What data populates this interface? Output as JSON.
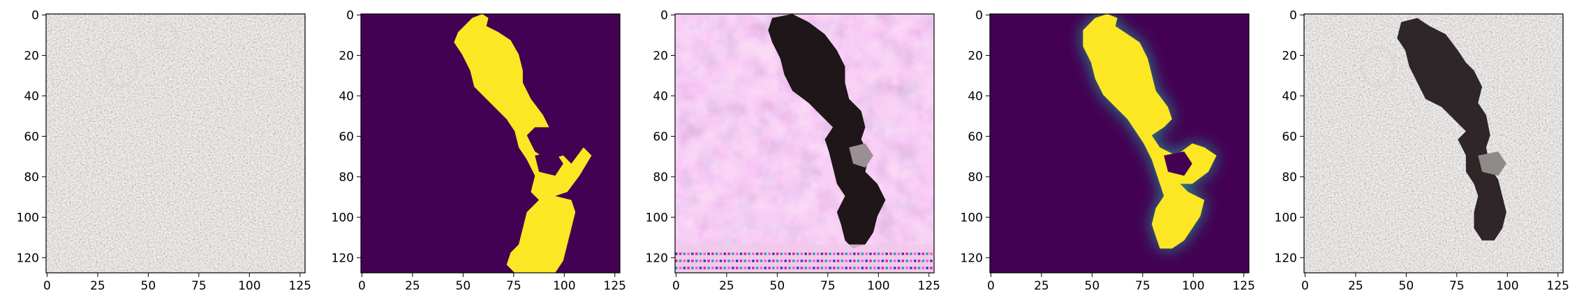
{
  "figure": {
    "panel_count": 5,
    "colors": {
      "viridis_low": "#440154",
      "viridis_high": "#fde725",
      "gravel_base": "#a9a59f",
      "dark_rock": "#1e1618",
      "pink_noise": "#e6a3d6"
    }
  },
  "chart_data": [
    {
      "type": "heatmap",
      "panel": "input-image",
      "title": "",
      "xlim": [
        0,
        128
      ],
      "ylim": [
        128,
        0
      ],
      "xticks": [
        0,
        25,
        50,
        75,
        100,
        125
      ],
      "yticks": [
        0,
        20,
        40,
        60,
        80,
        100,
        120
      ],
      "content": "gravel-texture"
    },
    {
      "type": "heatmap",
      "panel": "binary-mask",
      "title": "",
      "xlim": [
        0,
        128
      ],
      "ylim": [
        128,
        0
      ],
      "xticks": [
        0,
        25,
        50,
        75,
        100,
        125
      ],
      "yticks": [
        0,
        20,
        40,
        60,
        80,
        100,
        120
      ],
      "colormap": "viridis",
      "value_range": [
        0,
        1
      ],
      "content": "mask"
    },
    {
      "type": "heatmap",
      "panel": "generated-image",
      "title": "",
      "xlim": [
        0,
        128
      ],
      "ylim": [
        128,
        0
      ],
      "xticks": [
        0,
        25,
        50,
        75,
        100,
        125
      ],
      "yticks": [
        0,
        20,
        40,
        60,
        80,
        100,
        120
      ],
      "content": "pink-noise-with-dark-blob"
    },
    {
      "type": "heatmap",
      "panel": "soft-mask",
      "title": "",
      "xlim": [
        0,
        128
      ],
      "ylim": [
        128,
        0
      ],
      "xticks": [
        0,
        25,
        50,
        75,
        100,
        125
      ],
      "yticks": [
        0,
        20,
        40,
        60,
        80,
        100,
        120
      ],
      "colormap": "viridis",
      "value_range": [
        0,
        1
      ],
      "content": "smooth-mask"
    },
    {
      "type": "heatmap",
      "panel": "composite-image",
      "title": "",
      "xlim": [
        0,
        128
      ],
      "ylim": [
        128,
        0
      ],
      "xticks": [
        0,
        25,
        50,
        75,
        100,
        125
      ],
      "yticks": [
        0,
        20,
        40,
        60,
        80,
        100,
        120
      ],
      "content": "gravel-with-dark-blob"
    }
  ]
}
